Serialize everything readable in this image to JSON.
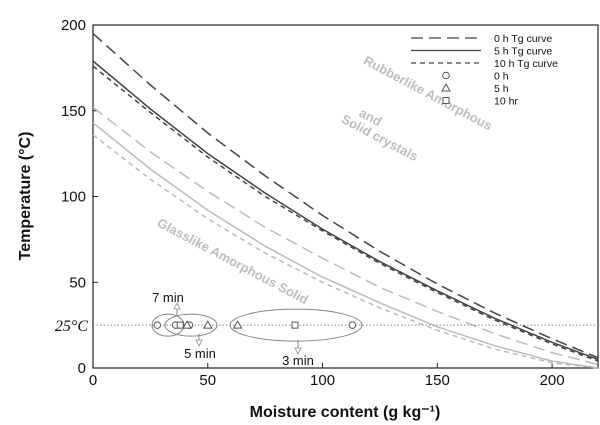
{
  "chart_data": {
    "type": "line",
    "xlabel": "Moisture content (g kg⁻¹)",
    "ylabel": "Temperature (°C)",
    "xlim": [
      0,
      220
    ],
    "ylim": [
      0,
      200
    ],
    "x_ticks": [
      0,
      50,
      100,
      150,
      200
    ],
    "y_ticks": [
      0,
      50,
      100,
      150,
      200
    ],
    "x_tick_labels": [
      "0",
      "50",
      "100",
      "150",
      "200"
    ],
    "y_tick_labels": [
      "0",
      "50",
      "100",
      "150",
      "200"
    ],
    "grid": false,
    "legend_position": "top-right",
    "legend": [
      {
        "label": "0 h  Tg curve",
        "style": "long-dash"
      },
      {
        "label": "5 h  Tg curve",
        "style": "solid"
      },
      {
        "label": "10 h  Tg curve",
        "style": "short-dash"
      },
      {
        "label": "0 h",
        "marker": "circle"
      },
      {
        "label": "5 h",
        "marker": "triangle"
      },
      {
        "label": "10 hr",
        "marker": "square"
      }
    ],
    "series": [
      {
        "style": "long-dash",
        "color": "#444444",
        "x": [
          0,
          25,
          50,
          75,
          100,
          125,
          150,
          175,
          200,
          220
        ],
        "y": [
          195,
          165,
          137,
          112,
          89,
          68,
          49,
          32,
          17,
          6
        ]
      },
      {
        "style": "solid",
        "color": "#444444",
        "x": [
          0,
          25,
          50,
          75,
          100,
          125,
          150,
          175,
          200,
          220
        ],
        "y": [
          179,
          151,
          125,
          102,
          81,
          62,
          45,
          29,
          15,
          5
        ]
      },
      {
        "style": "short-dash",
        "color": "#444444",
        "x": [
          0,
          25,
          50,
          75,
          100,
          125,
          150,
          175,
          200,
          220
        ],
        "y": [
          176,
          149,
          123,
          100,
          80,
          61,
          44,
          28,
          14,
          4
        ]
      },
      {
        "style": "long-dash",
        "color": "#bbbbbb",
        "x": [
          0,
          25,
          50,
          75,
          100,
          125,
          150,
          175,
          200,
          220
        ],
        "y": [
          152,
          126,
          103,
          82,
          64,
          47,
          33,
          20,
          9,
          2
        ]
      },
      {
        "style": "solid",
        "color": "#bbbbbb",
        "x": [
          0,
          25,
          50,
          75,
          100,
          125,
          150,
          175,
          200,
          220
        ],
        "y": [
          143,
          116,
          92,
          71,
          53,
          38,
          24,
          13,
          4,
          0
        ]
      },
      {
        "style": "short-dash",
        "color": "#bbbbbb",
        "x": [
          0,
          25,
          50,
          75,
          100,
          125,
          150,
          175,
          200,
          220
        ],
        "y": [
          136,
          110,
          87,
          67,
          50,
          35,
          22,
          11,
          3,
          0
        ]
      }
    ],
    "points": [
      {
        "marker": "circle",
        "x": [
          28,
          36,
          42,
          113
        ]
      },
      {
        "marker": "triangle",
        "x": [
          41,
          50,
          63
        ]
      },
      {
        "marker": "square",
        "x": [
          38,
          88
        ]
      }
    ],
    "points_y": 25,
    "reference_line": {
      "y": 25,
      "label": "25°C"
    },
    "regions": [
      {
        "label": "Rubberlike Amorphous",
        "x": 145,
        "y": 158
      },
      {
        "label": "and",
        "x": 120,
        "y": 144
      },
      {
        "label": "Solid crystals",
        "x": 124,
        "y": 132
      },
      {
        "label": "Glasslike Amorphous Solid",
        "x": 60,
        "y": 60
      }
    ],
    "annotations": [
      {
        "label": "7 min"
      },
      {
        "label": "5 min"
      },
      {
        "label": "3 min"
      }
    ]
  }
}
